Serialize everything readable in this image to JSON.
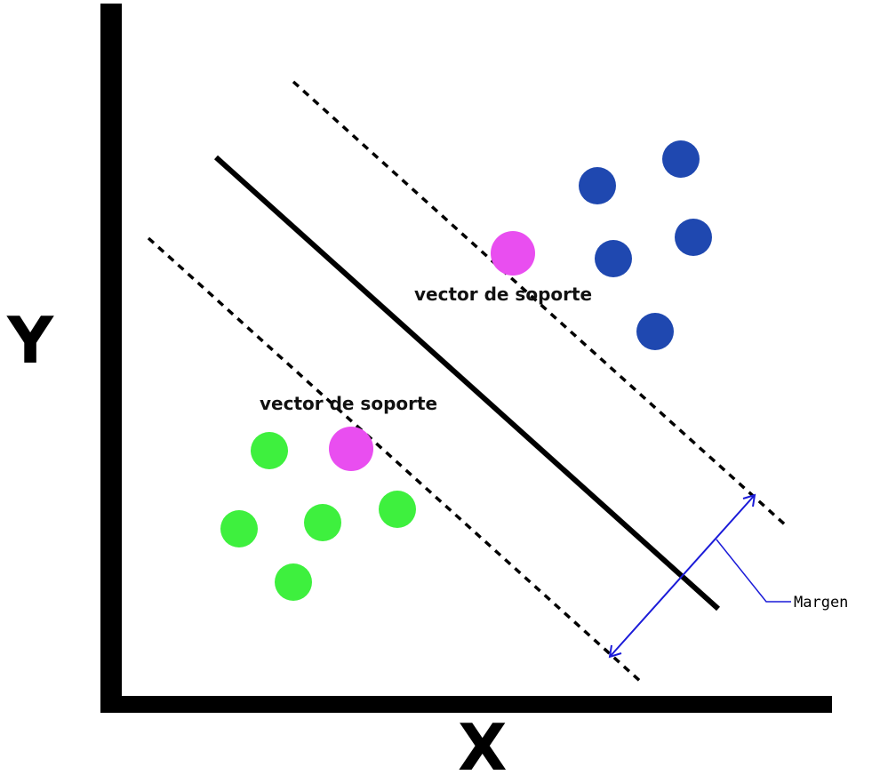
{
  "axes": {
    "x_label": "X",
    "y_label": "Y"
  },
  "labels": {
    "support_vector_upper": "vector de soporte",
    "support_vector_lower": "vector de soporte",
    "margin": "Margen"
  },
  "colors": {
    "blue_class": "#1f48b0",
    "green_class": "#3ef03e",
    "support_vector": "#e94ef0",
    "axis": "#000000",
    "hyperplane": "#000000",
    "margin_arrow": "#1a1ad8"
  }
}
